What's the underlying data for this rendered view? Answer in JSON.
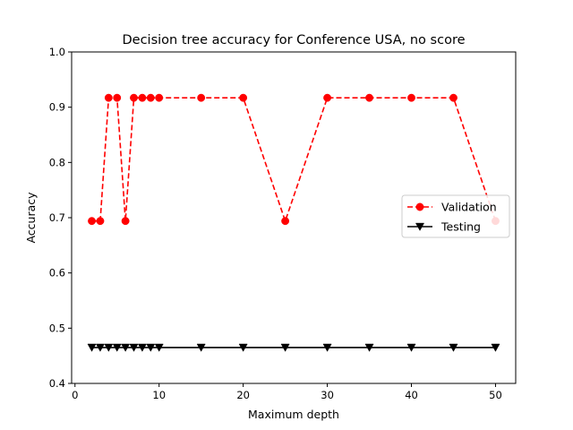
{
  "chart_data": {
    "type": "line",
    "title": "Decision tree accuracy for Conference USA, no score",
    "xlabel": "Maximum depth",
    "ylabel": "Accuracy",
    "xlim": [
      -0.4,
      52.4
    ],
    "ylim": [
      0.4,
      1.0
    ],
    "xticks": [
      0,
      10,
      20,
      30,
      40,
      50
    ],
    "yticks": [
      0.4,
      0.5,
      0.6,
      0.7,
      0.8,
      0.9,
      1.0
    ],
    "xtick_labels": [
      "0",
      "10",
      "20",
      "30",
      "40",
      "50"
    ],
    "ytick_labels": [
      "0.4",
      "0.5",
      "0.6",
      "0.7",
      "0.8",
      "0.9",
      "1.0"
    ],
    "grid": false,
    "legend_position": "center-right",
    "x": [
      2,
      3,
      4,
      5,
      6,
      7,
      8,
      9,
      10,
      15,
      20,
      25,
      30,
      35,
      40,
      45,
      50
    ],
    "series": [
      {
        "name": "Validation",
        "color": "#ff0000",
        "line_style": "dashed",
        "marker": "circle",
        "values": [
          0.694,
          0.694,
          0.917,
          0.917,
          0.694,
          0.917,
          0.917,
          0.917,
          0.917,
          0.917,
          0.917,
          0.694,
          0.917,
          0.917,
          0.917,
          0.917,
          0.694
        ]
      },
      {
        "name": "Testing",
        "color": "#000000",
        "line_style": "solid",
        "marker": "triangle-down",
        "values": [
          0.465,
          0.465,
          0.465,
          0.465,
          0.465,
          0.465,
          0.465,
          0.465,
          0.465,
          0.465,
          0.465,
          0.465,
          0.465,
          0.465,
          0.465,
          0.465,
          0.465
        ]
      }
    ]
  }
}
